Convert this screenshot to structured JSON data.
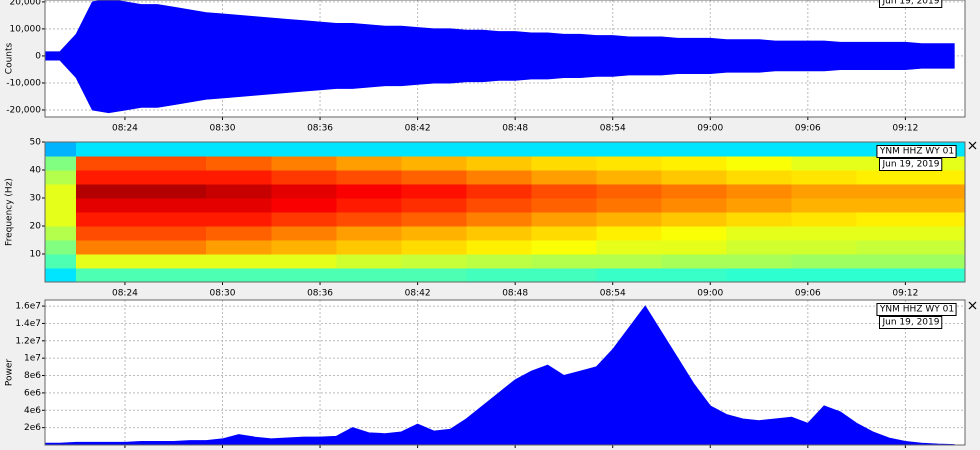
{
  "chart_data": [
    {
      "type": "waveform",
      "ylabel": "Counts",
      "date": "Jun 19, 2019",
      "color": "#0000ff",
      "grid": true,
      "xlim": [
        "08:19:05",
        "09:15:40"
      ],
      "ylim": [
        -22600,
        20700
      ],
      "xticks": [
        "08:24",
        "08:30",
        "08:36",
        "08:42",
        "08:48",
        "08:54",
        "09:00",
        "09:06",
        "09:12"
      ],
      "yticks": [
        {
          "value": 20000,
          "label": "20,000"
        },
        {
          "value": 10000,
          "label": "10,000"
        },
        0,
        {
          "value": -10000,
          "label": "-10,000"
        },
        {
          "value": -20000,
          "label": "-20,000"
        }
      ],
      "x": [
        "08:19",
        "08:20",
        "08:21",
        "08:22",
        "08:23",
        "08:24",
        "08:25",
        "08:26",
        "08:27",
        "08:28",
        "08:29",
        "08:30",
        "08:31",
        "08:32",
        "08:33",
        "08:34",
        "08:35",
        "08:36",
        "08:37",
        "08:38",
        "08:39",
        "08:40",
        "08:41",
        "08:42",
        "08:43",
        "08:44",
        "08:45",
        "08:46",
        "08:47",
        "08:48",
        "08:49",
        "08:50",
        "08:51",
        "08:52",
        "08:53",
        "08:54",
        "08:55",
        "08:56",
        "08:57",
        "08:58",
        "08:59",
        "09:00",
        "09:01",
        "09:02",
        "09:03",
        "09:04",
        "09:05",
        "09:06",
        "09:07",
        "09:08",
        "09:09",
        "09:10",
        "09:11",
        "09:12",
        "09:13",
        "09:14",
        "09:15"
      ],
      "values": [
        1500,
        1500,
        8000,
        20000,
        21000,
        20000,
        19000,
        19000,
        18000,
        17000,
        16000,
        15500,
        15000,
        14500,
        14000,
        13500,
        13000,
        12500,
        12000,
        12000,
        11500,
        11000,
        11000,
        10500,
        10000,
        10000,
        9500,
        9500,
        9000,
        9000,
        8500,
        8500,
        8000,
        8000,
        7500,
        7500,
        7000,
        7000,
        7000,
        6500,
        6500,
        6500,
        6000,
        6000,
        6000,
        5500,
        5500,
        5500,
        5500,
        5000,
        5000,
        5000,
        5000,
        5000,
        4500,
        4500,
        4500
      ]
    },
    {
      "type": "spectrogram",
      "station": "YNM HHZ WY 01",
      "date": "Jun 19, 2019",
      "ylabel": "Frequency (Hz)",
      "colormap": "jet",
      "grid": false,
      "xlim": [
        "08:19:05",
        "09:15:40"
      ],
      "ylim": [
        0,
        50
      ],
      "xticks": [
        "08:24",
        "08:30",
        "08:36",
        "08:42",
        "08:48",
        "08:54",
        "09:00",
        "09:06",
        "09:12"
      ],
      "yticks": [
        10,
        20,
        30,
        40,
        50
      ],
      "x": [
        "08:19",
        "08:21",
        "08:25",
        "08:29",
        "08:33",
        "08:37",
        "08:41",
        "08:45",
        "08:49",
        "08:53",
        "08:57",
        "09:01",
        "09:05",
        "09:09",
        "09:13"
      ],
      "bins": [
        0,
        5,
        10,
        15,
        20,
        25,
        30,
        35,
        40,
        45,
        50
      ],
      "z": [
        [
          0.35,
          0.45,
          0.5,
          0.55,
          0.6,
          0.6,
          0.6,
          0.55,
          0.5,
          0.3
        ],
        [
          0.45,
          0.6,
          0.75,
          0.8,
          0.85,
          0.9,
          0.95,
          0.85,
          0.8,
          0.35
        ],
        [
          0.45,
          0.6,
          0.75,
          0.8,
          0.85,
          0.9,
          0.95,
          0.85,
          0.8,
          0.35
        ],
        [
          0.45,
          0.6,
          0.72,
          0.78,
          0.85,
          0.9,
          0.93,
          0.85,
          0.78,
          0.35
        ],
        [
          0.45,
          0.6,
          0.7,
          0.75,
          0.82,
          0.88,
          0.9,
          0.82,
          0.75,
          0.35
        ],
        [
          0.45,
          0.58,
          0.68,
          0.72,
          0.8,
          0.85,
          0.88,
          0.8,
          0.72,
          0.35
        ],
        [
          0.45,
          0.57,
          0.66,
          0.7,
          0.78,
          0.83,
          0.86,
          0.78,
          0.7,
          0.35
        ],
        [
          0.44,
          0.56,
          0.64,
          0.68,
          0.75,
          0.8,
          0.83,
          0.75,
          0.68,
          0.35
        ],
        [
          0.44,
          0.55,
          0.62,
          0.66,
          0.72,
          0.78,
          0.8,
          0.72,
          0.66,
          0.35
        ],
        [
          0.43,
          0.55,
          0.6,
          0.64,
          0.7,
          0.76,
          0.78,
          0.7,
          0.65,
          0.35
        ],
        [
          0.43,
          0.54,
          0.6,
          0.62,
          0.68,
          0.74,
          0.76,
          0.68,
          0.64,
          0.35
        ],
        [
          0.42,
          0.54,
          0.58,
          0.6,
          0.66,
          0.72,
          0.74,
          0.66,
          0.62,
          0.35
        ],
        [
          0.42,
          0.53,
          0.58,
          0.6,
          0.65,
          0.7,
          0.72,
          0.65,
          0.6,
          0.35
        ],
        [
          0.42,
          0.53,
          0.57,
          0.6,
          0.64,
          0.7,
          0.72,
          0.64,
          0.6,
          0.35
        ],
        [
          0.42,
          0.53,
          0.57,
          0.6,
          0.64,
          0.7,
          0.72,
          0.64,
          0.6,
          0.35
        ]
      ]
    },
    {
      "type": "area",
      "station": "YNM HHZ WY 01",
      "date": "Jun 19, 2019",
      "ylabel": "Power",
      "color": "#0000ff",
      "grid": true,
      "xlim": [
        "08:19:05",
        "09:15:40"
      ],
      "ylim": [
        0,
        16700000
      ],
      "xticks": [
        "08:24",
        "08:30",
        "08:36",
        "08:42",
        "08:48",
        "08:54",
        "09:00",
        "09:06",
        "09:12"
      ],
      "yticks": [
        {
          "value": 2000000,
          "label": "2e6"
        },
        {
          "value": 4000000,
          "label": "4e6"
        },
        {
          "value": 6000000,
          "label": "6e6"
        },
        {
          "value": 8000000,
          "label": "8e6"
        },
        {
          "value": 10000000,
          "label": "1e7"
        },
        {
          "value": 12000000,
          "label": "1.2e7"
        },
        {
          "value": 14000000,
          "label": "1.4e7"
        },
        {
          "value": 16000000,
          "label": "1.6e7"
        }
      ],
      "x": [
        "08:19",
        "08:20",
        "08:21",
        "08:22",
        "08:23",
        "08:24",
        "08:25",
        "08:26",
        "08:27",
        "08:28",
        "08:29",
        "08:30",
        "08:31",
        "08:32",
        "08:33",
        "08:34",
        "08:35",
        "08:36",
        "08:37",
        "08:38",
        "08:39",
        "08:40",
        "08:41",
        "08:42",
        "08:43",
        "08:44",
        "08:45",
        "08:46",
        "08:47",
        "08:48",
        "08:49",
        "08:50",
        "08:51",
        "08:52",
        "08:53",
        "08:54",
        "08:55",
        "08:56",
        "08:57",
        "08:58",
        "08:59",
        "09:00",
        "09:01",
        "09:02",
        "09:03",
        "09:04",
        "09:05",
        "09:06",
        "09:07",
        "09:08",
        "09:09",
        "09:10",
        "09:11",
        "09:12",
        "09:13",
        "09:14",
        "09:15"
      ],
      "values": [
        200000,
        200000,
        300000,
        300000,
        300000,
        300000,
        400000,
        400000,
        400000,
        500000,
        500000,
        700000,
        1200000,
        900000,
        700000,
        800000,
        900000,
        900000,
        1000000,
        2000000,
        1400000,
        1300000,
        1500000,
        2400000,
        1600000,
        1800000,
        3000000,
        4500000,
        6000000,
        7500000,
        8500000,
        9200000,
        8000000,
        8500000,
        9000000,
        11000000,
        13500000,
        16000000,
        13000000,
        10000000,
        7000000,
        4500000,
        3500000,
        3000000,
        2800000,
        3000000,
        3200000,
        2500000,
        4500000,
        3800000,
        2500000,
        1500000,
        800000,
        400000,
        200000,
        100000,
        50000
      ]
    }
  ]
}
